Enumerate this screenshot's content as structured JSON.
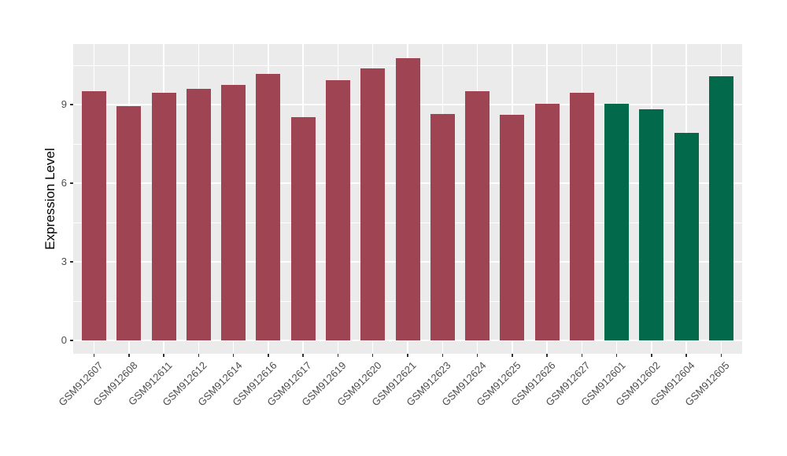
{
  "figure": {
    "background_color": "#FFFFFF",
    "panel_background_color": "#EBEBEB",
    "grid_color": "#FFFFFF",
    "tick_mark_color": "#333333",
    "axis_text_color": "#4D4D4D",
    "axis_title_color": "#000000"
  },
  "chart_data": {
    "type": "bar",
    "title": "",
    "xlabel": "",
    "ylabel": "Expression Level",
    "categories": [
      "GSM912607",
      "GSM912608",
      "GSM912611",
      "GSM912612",
      "GSM912614",
      "GSM912616",
      "GSM912617",
      "GSM912619",
      "GSM912620",
      "GSM912621",
      "GSM912623",
      "GSM912624",
      "GSM912625",
      "GSM912626",
      "GSM912627",
      "GSM912601",
      "GSM912602",
      "GSM912604",
      "GSM912605"
    ],
    "values": [
      9.52,
      8.93,
      9.46,
      9.61,
      9.75,
      10.16,
      8.53,
      9.94,
      10.39,
      10.76,
      8.65,
      9.51,
      8.62,
      9.03,
      9.45,
      9.02,
      8.82,
      7.93,
      10.07
    ],
    "bar_groups": [
      "group1",
      "group1",
      "group1",
      "group1",
      "group1",
      "group1",
      "group1",
      "group1",
      "group1",
      "group1",
      "group1",
      "group1",
      "group1",
      "group1",
      "group1",
      "group2",
      "group2",
      "group2",
      "group2"
    ],
    "group_colors": {
      "group1": "#9E4452",
      "group2": "#02694B"
    },
    "ylim": [
      -0.54,
      11.31
    ],
    "yticks": [
      0,
      3,
      6,
      9
    ],
    "yticks_minor": [
      1.5,
      4.5,
      7.5,
      10.5
    ],
    "grid": true,
    "legend": "none",
    "x_tick_rotation": 45
  }
}
